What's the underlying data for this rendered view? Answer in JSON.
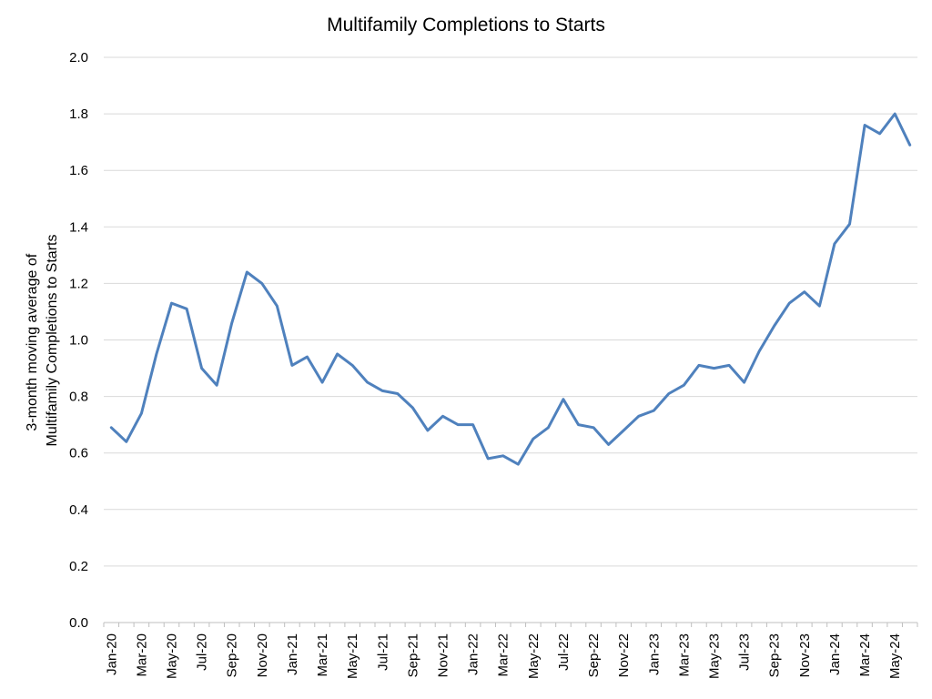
{
  "chart_data": {
    "type": "line",
    "title": "Multifamily Completions to Starts",
    "xlabel": "",
    "ylabel_lines": [
      "3-month moving average of",
      "Multifamily Completions to Starts"
    ],
    "ylim": [
      0,
      2.0
    ],
    "yticks": [
      "0.0",
      "0.2",
      "0.4",
      "0.6",
      "0.8",
      "1.0",
      "1.2",
      "1.4",
      "1.6",
      "1.8",
      "2.0"
    ],
    "grid": true,
    "legend": "none",
    "line_color": "#4f81bd",
    "x": [
      "Jan-20",
      "Feb-20",
      "Mar-20",
      "Apr-20",
      "May-20",
      "Jun-20",
      "Jul-20",
      "Aug-20",
      "Sep-20",
      "Oct-20",
      "Nov-20",
      "Dec-20",
      "Jan-21",
      "Feb-21",
      "Mar-21",
      "Apr-21",
      "May-21",
      "Jun-21",
      "Jul-21",
      "Aug-21",
      "Sep-21",
      "Oct-21",
      "Nov-21",
      "Dec-21",
      "Jan-22",
      "Feb-22",
      "Mar-22",
      "Apr-22",
      "May-22",
      "Jun-22",
      "Jul-22",
      "Aug-22",
      "Sep-22",
      "Oct-22",
      "Nov-22",
      "Dec-22",
      "Jan-23",
      "Feb-23",
      "Mar-23",
      "Apr-23",
      "May-23",
      "Jun-23",
      "Jul-23",
      "Aug-23",
      "Sep-23",
      "Oct-23",
      "Nov-23",
      "Dec-23",
      "Jan-24",
      "Feb-24",
      "Mar-24",
      "Apr-24",
      "May-24",
      "Jun-24"
    ],
    "x_tick_labels": [
      "Jan-20",
      "Mar-20",
      "May-20",
      "Jul-20",
      "Sep-20",
      "Nov-20",
      "Jan-21",
      "Mar-21",
      "May-21",
      "Jul-21",
      "Sep-21",
      "Nov-21",
      "Jan-22",
      "Mar-22",
      "May-22",
      "Jul-22",
      "Sep-22",
      "Nov-22",
      "Jan-23",
      "Mar-23",
      "May-23",
      "Jul-23",
      "Sep-23",
      "Nov-23",
      "Jan-24",
      "Mar-24",
      "May-24"
    ],
    "series": [
      {
        "values": [
          0.69,
          0.64,
          0.74,
          0.95,
          1.13,
          1.11,
          0.9,
          0.84,
          1.06,
          1.24,
          1.2,
          1.12,
          0.91,
          0.94,
          0.85,
          0.95,
          0.91,
          0.85,
          0.82,
          0.81,
          0.76,
          0.68,
          0.73,
          0.7,
          0.7,
          0.58,
          0.59,
          0.56,
          0.65,
          0.69,
          0.79,
          0.7,
          0.69,
          0.63,
          0.68,
          0.73,
          0.75,
          0.81,
          0.84,
          0.91,
          0.9,
          0.91,
          0.85,
          0.96,
          1.05,
          1.13,
          1.17,
          1.12,
          1.34,
          1.41,
          1.76,
          1.73,
          1.8,
          1.69
        ]
      }
    ]
  }
}
